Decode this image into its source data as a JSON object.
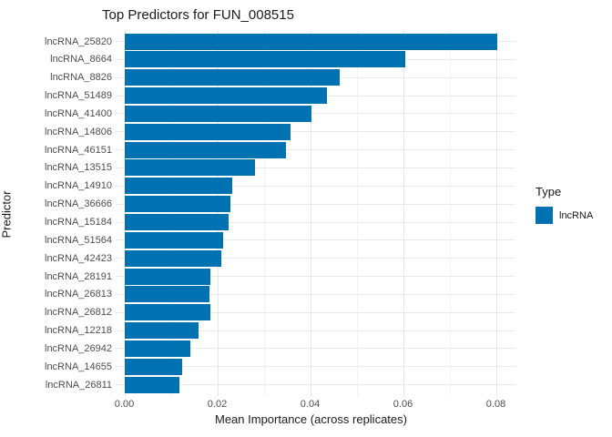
{
  "title": "Top Predictors for FUN_008515",
  "colors": {
    "bar_fill": "#0072B2",
    "grid_major": "#E6E6E6",
    "grid_minor": "#F2F2F2",
    "tick_text": "#4D4D4D",
    "title_text": "#1A1A1A"
  },
  "legend": {
    "title": "Type",
    "entries": [
      {
        "label": "lncRNA",
        "color": "#0072B2"
      }
    ],
    "position": "right"
  },
  "chart_data": {
    "type": "bar",
    "orientation": "horizontal",
    "title": "Top Predictors for FUN_008515",
    "xlabel": "Mean Importance (across replicates)",
    "ylabel": "Predictor",
    "grid": true,
    "xlim": [
      0,
      0.0842
    ],
    "x_ticks": [
      {
        "value": 0.0,
        "label": "0.00"
      },
      {
        "value": 0.02,
        "label": "0.02"
      },
      {
        "value": 0.04,
        "label": "0.04"
      },
      {
        "value": 0.06,
        "label": "0.06"
      },
      {
        "value": 0.08,
        "label": "0.08"
      }
    ],
    "x_minor_ticks": [
      0.01,
      0.03,
      0.05,
      0.07
    ],
    "categories": [
      "lncRNA_25820",
      "lncRNA_8664",
      "lncRNA_8826",
      "lncRNA_51489",
      "lncRNA_41400",
      "lncRNA_14806",
      "lncRNA_46151",
      "lncRNA_13515",
      "lncRNA_14910",
      "lncRNA_36666",
      "lncRNA_15184",
      "lncRNA_51564",
      "lncRNA_42423",
      "lncRNA_28191",
      "lncRNA_26813",
      "lncRNA_26812",
      "lncRNA_12218",
      "lncRNA_26942",
      "lncRNA_14655",
      "lncRNA_26811"
    ],
    "series": [
      {
        "name": "lncRNA",
        "values": [
          0.0803,
          0.0605,
          0.0463,
          0.0437,
          0.0403,
          0.0357,
          0.0348,
          0.0282,
          0.0232,
          0.0228,
          0.0225,
          0.0212,
          0.0209,
          0.0186,
          0.0184,
          0.0185,
          0.0159,
          0.0142,
          0.0125,
          0.0118
        ]
      }
    ]
  }
}
